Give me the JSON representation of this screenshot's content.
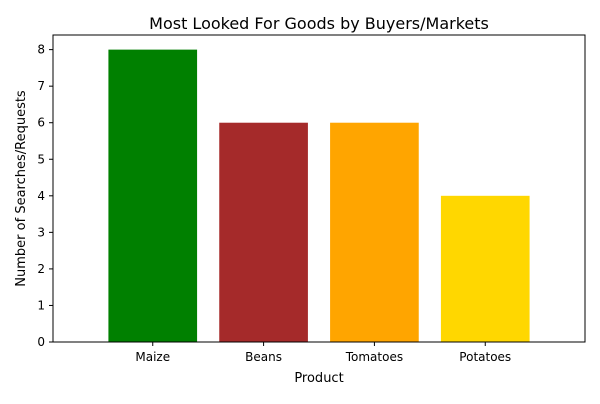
{
  "chart_data": {
    "type": "bar",
    "title": "Most Looked For Goods by Buyers/Markets",
    "xlabel": "Product",
    "ylabel": "Number of Searches/Requests",
    "categories": [
      "Maize",
      "Beans",
      "Tomatoes",
      "Potatoes"
    ],
    "values": [
      8,
      6,
      6,
      4
    ],
    "colors": [
      "#008000",
      "#a52a2a",
      "#ffa500",
      "#ffd700"
    ],
    "ylim": [
      0,
      8.4
    ],
    "yticks": [
      0,
      1,
      2,
      3,
      4,
      5,
      6,
      7,
      8
    ],
    "grid": false,
    "legend": "none"
  }
}
